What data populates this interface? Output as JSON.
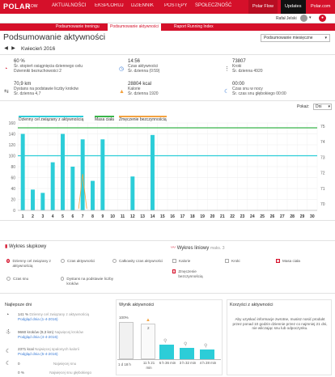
{
  "header": {
    "logo": "POLAR",
    "logo_sub": "FLOW",
    "nav": [
      "AKTUALNOŚCI",
      "EKSPLORUJ",
      "DZIENNIK",
      "POSTĘPY",
      "SPOŁECZNOŚĆ"
    ],
    "right": [
      "Polar Flow",
      "Updates",
      "Polar.com"
    ],
    "user": "Rafał Jelski"
  },
  "subnav": [
    "Podsumowanie treningu",
    "Podsumowanie aktywności",
    "Raport Running Index"
  ],
  "page": {
    "title": "Podsumowanie aktywności",
    "period": "Kwiecień 2016",
    "period_select": "Podsumowanie miesięczne"
  },
  "stats": [
    {
      "value": "60 %",
      "line1": "Śr. stopień osiągnięcia dziennego celu",
      "line2": "Dzienniki bezruchowości 2"
    },
    {
      "value": "14:56",
      "line1": "Czas aktywności",
      "line2": "Śr. dzienna (0:59)"
    },
    {
      "value": "73807",
      "line1": "Kroki",
      "line2": "Śr. dzienna 4920"
    },
    {
      "value": "70,9 km",
      "line1": "Dystans na podstawie liczby kroków",
      "line2": "Śr. dzienna 4,7"
    },
    {
      "value": "28804 kcal",
      "line1": "Kalorie",
      "line2": "Śr. dzienna 1920"
    },
    {
      "value": "00:00",
      "line1": "Czas snu w nocy",
      "line2": "Śr. czas snu głębokiego 00:00"
    }
  ],
  "chart_controls": {
    "label": "Pokaż:",
    "value": "Dni"
  },
  "chart_data": {
    "type": "bar",
    "legend": [
      "Dzienny cel związany z aktywnością",
      "Masa ciała",
      "Zmęczenie bezczynnością"
    ],
    "categories": [
      "1",
      "2",
      "3",
      "4",
      "5",
      "6",
      "7",
      "8",
      "9",
      "10",
      "11",
      "12",
      "13",
      "14",
      "15",
      "16",
      "17",
      "18",
      "19",
      "20",
      "21",
      "22",
      "23",
      "24",
      "25",
      "26",
      "27",
      "28",
      "29",
      "30"
    ],
    "values": [
      140,
      38,
      32,
      88,
      140,
      80,
      130,
      54,
      130,
      0,
      0,
      62,
      0,
      138,
      0,
      0,
      0,
      0,
      0,
      0,
      0,
      0,
      0,
      0,
      0,
      0,
      0,
      0,
      0,
      0
    ],
    "ylim": [
      0,
      160
    ],
    "yticks_left": [
      0,
      20,
      40,
      60,
      80,
      100,
      120,
      140,
      160
    ],
    "yticks_right": [
      70,
      71,
      72,
      73,
      74,
      75
    ],
    "goal_line": 100,
    "weight_line": 75,
    "colors": {
      "bar": "#2ccdd8",
      "goal": "#2ccdd8",
      "weight": "#39b54a",
      "inactivity": "#f4a340"
    }
  },
  "chart_options": {
    "bar_title": "Wykres słupkowy",
    "line_title": "Wykres liniowy",
    "line_max": "maks. 3",
    "bar_radios": [
      "Dzienny cel związany z aktywnością",
      "Czas aktywności",
      "Całkowity czas aktywności",
      "Czas snu",
      "Dystans na podstawie liczby kroków"
    ],
    "line_checks": [
      "Kalorie",
      "Kroki",
      "Masa ciała",
      "Zmęczenie bezczynnością"
    ]
  },
  "best_days": {
    "title": "Najlepsze dni",
    "items": [
      {
        "value": "141 %",
        "label": "Dzienny cel związany z aktywnością",
        "link": "Podgląd dnia (1-4-2016)"
      },
      {
        "value": "9660 kroków (9,3 km)",
        "label": "Najwięcej kroków",
        "link": "Podgląd dnia (4-4-2016)"
      },
      {
        "value": "2371 kcal",
        "label": "Najwięcej spalonych kalorii",
        "link": "Podgląd dnia (5-4-2016)"
      },
      {
        "value": "0",
        "label": "Najwięcej snu",
        "link": ""
      },
      {
        "value": "0 %",
        "label": "Najwięcej snu głębokiego",
        "link": ""
      }
    ]
  },
  "activity_result": {
    "title": "Wynik aktywności",
    "top_pct": "100%",
    "alert_count": "2",
    "times": [
      "1 d 18 h",
      "11 h 21 min",
      "6 h 36 min",
      "3 h 32 min",
      "4 h 28 min"
    ]
  },
  "benefit": {
    "title": "Korzyści z aktywności",
    "text": "Aby uzyskać informacje zwrotne, musisz nosić produkt przez ponad 10 godzin dziennie przez co najmniej 21 dni, nie wliczając snu lub odpoczynku."
  }
}
